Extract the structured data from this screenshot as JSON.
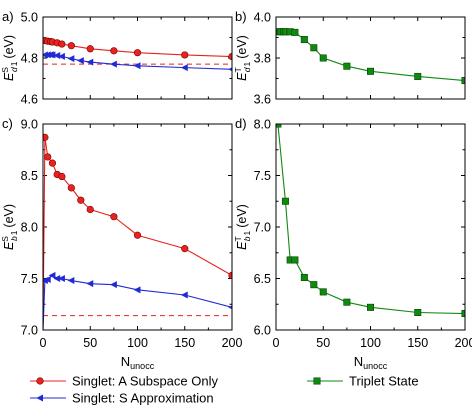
{
  "chart_data": [
    {
      "type": "line",
      "panel_label": "a)",
      "ylabel": "E_d1^S (eV)",
      "ylabel_main": "E",
      "ylabel_sub": "d",
      "ylabel_sub2": "1",
      "ylabel_sup": "S",
      "ylabel_unit": "(eV)",
      "xlim": [
        0,
        200
      ],
      "ylim": [
        4.6,
        5.0
      ],
      "yticks": [
        "4.6",
        "4.8",
        "5.0"
      ],
      "xticks": [],
      "reference_line": 4.77,
      "series": [
        {
          "name": "Singlet: A Subspace Only",
          "color": "#e8231f",
          "marker": "circle",
          "x": [
            2,
            5,
            8,
            10,
            15,
            20,
            30,
            50,
            75,
            100,
            150,
            200
          ],
          "y": [
            4.885,
            4.882,
            4.88,
            4.878,
            4.874,
            4.868,
            4.86,
            4.845,
            4.835,
            4.826,
            4.815,
            4.807
          ]
        },
        {
          "name": "Singlet: S Approximation",
          "color": "#1f2bd4",
          "marker": "triangle-left",
          "x": [
            2,
            5,
            8,
            10,
            15,
            20,
            30,
            40,
            50,
            75,
            100,
            150,
            200
          ],
          "y": [
            4.815,
            4.815,
            4.816,
            4.815,
            4.812,
            4.808,
            4.797,
            4.787,
            4.78,
            4.77,
            4.762,
            4.753,
            4.745
          ]
        }
      ]
    },
    {
      "type": "line",
      "panel_label": "b)",
      "ylabel_main": "E",
      "ylabel_sub": "d",
      "ylabel_sub2": "1",
      "ylabel_sup": "T",
      "ylabel_unit": "(eV)",
      "xlim": [
        0,
        200
      ],
      "ylim": [
        3.6,
        4.0
      ],
      "yticks": [
        "3.6",
        "3.8",
        "4.0"
      ],
      "xticks": [],
      "series": [
        {
          "name": "Triplet State",
          "color": "#0f8a0f",
          "marker": "square",
          "x": [
            2,
            5,
            8,
            10,
            15,
            20,
            30,
            40,
            50,
            75,
            100,
            150,
            200
          ],
          "y": [
            3.928,
            3.928,
            3.928,
            3.928,
            3.928,
            3.925,
            3.89,
            3.85,
            3.8,
            3.76,
            3.735,
            3.71,
            3.69
          ]
        }
      ]
    },
    {
      "type": "line",
      "panel_label": "c)",
      "ylabel_main": "E",
      "ylabel_sub": "b",
      "ylabel_sub2": "1",
      "ylabel_sup": "S",
      "ylabel_unit": "(eV)",
      "xlabel_main": "N",
      "xlabel_sub": "unocc",
      "xlim": [
        0,
        200
      ],
      "ylim": [
        7.0,
        9.0
      ],
      "yticks": [
        "7.0",
        "7.5",
        "8.0",
        "8.5",
        "9.0"
      ],
      "xticks": [
        "0",
        "50",
        "100",
        "150",
        "200"
      ],
      "reference_line": 7.14,
      "series": [
        {
          "name": "Singlet: A Subspace Only",
          "color": "#e8231f",
          "marker": "circle",
          "x": [
            0,
            2,
            5,
            10,
            15,
            20,
            30,
            40,
            50,
            75,
            100,
            150,
            200
          ],
          "y": [
            7.0,
            8.87,
            8.68,
            8.62,
            8.51,
            8.49,
            8.38,
            8.26,
            8.17,
            8.1,
            7.92,
            7.79,
            7.53
          ]
        },
        {
          "name": "Singlet: S Approximation",
          "color": "#1f2bd4",
          "marker": "triangle-left",
          "x": [
            0,
            2,
            5,
            10,
            15,
            20,
            30,
            50,
            75,
            100,
            150,
            200
          ],
          "y": [
            7.0,
            7.48,
            7.49,
            7.53,
            7.5,
            7.5,
            7.48,
            7.45,
            7.44,
            7.39,
            7.34,
            7.22
          ]
        }
      ]
    },
    {
      "type": "line",
      "panel_label": "d)",
      "ylabel_main": "E",
      "ylabel_sub": "b",
      "ylabel_sub2": "1",
      "ylabel_sup": "T",
      "ylabel_unit": "(eV)",
      "xlabel_main": "N",
      "xlabel_sub": "unocc",
      "xlim": [
        0,
        200
      ],
      "ylim": [
        6.0,
        8.0
      ],
      "yticks": [
        "6.0",
        "6.5",
        "7.0",
        "7.5",
        "8.0"
      ],
      "xticks": [
        "0",
        "50",
        "100",
        "150",
        "200"
      ],
      "series": [
        {
          "name": "Triplet State",
          "color": "#0f8a0f",
          "marker": "square",
          "x": [
            2,
            10,
            15,
            20,
            30,
            40,
            50,
            75,
            100,
            150,
            200
          ],
          "y": [
            8.0,
            7.25,
            6.68,
            6.68,
            6.51,
            6.44,
            6.37,
            6.27,
            6.22,
            6.17,
            6.16
          ]
        }
      ]
    }
  ],
  "legend": {
    "items": [
      {
        "label": "Singlet: A Subspace Only",
        "color": "#e8231f",
        "marker": "circle"
      },
      {
        "label": "Singlet: S Approximation",
        "color": "#1f2bd4",
        "marker": "triangle-left"
      },
      {
        "label": "Triplet State",
        "color": "#0f8a0f",
        "marker": "square"
      }
    ]
  }
}
